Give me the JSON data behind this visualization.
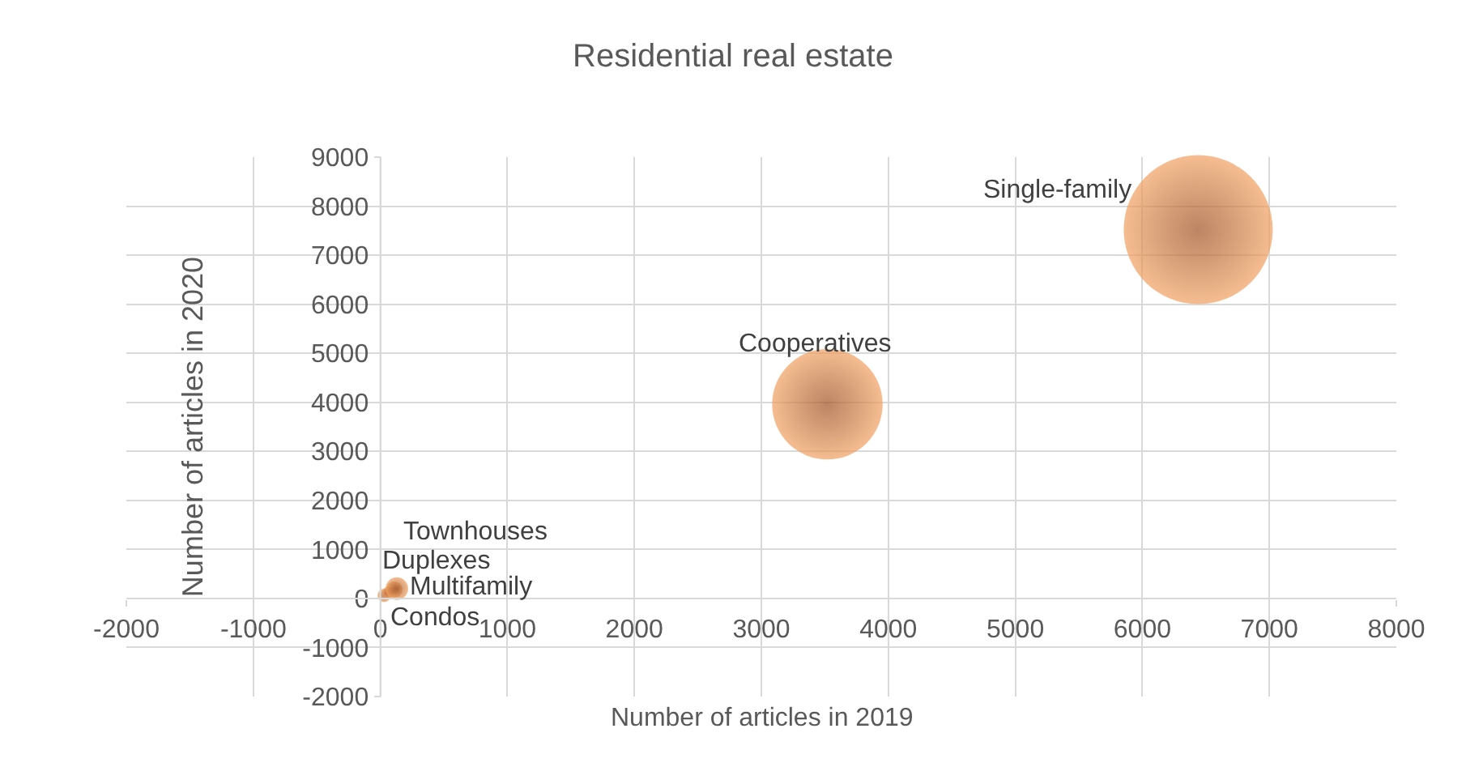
{
  "chart_data": {
    "type": "bubble",
    "title": "Residential real estate",
    "xlabel": "Number of articles in 2019",
    "ylabel": "Number of articles in 2020",
    "x": [
      30,
      60,
      110,
      130,
      3520,
      6440
    ],
    "values": [
      60,
      120,
      180,
      200,
      3960,
      7520
    ],
    "sizes": [
      0.008,
      0.006,
      0.012,
      0.023,
      0.55,
      1
    ],
    "color": "#f0a060",
    "annotations": [
      {
        "text": "Condos",
        "x": 30,
        "y": 60
      },
      {
        "text": "Duplexes",
        "x": 60,
        "y": 120
      },
      {
        "text": "Townhouses",
        "x": 110,
        "y": 180
      },
      {
        "text": "Multifamily",
        "x": 130,
        "y": 200
      },
      {
        "text": "Cooperatives",
        "x": 3520,
        "y": 3960
      },
      {
        "text": "Single-family",
        "x": 6440,
        "y": 7520
      }
    ],
    "xlim": [
      -2000,
      8000
    ],
    "xticks": [
      -2000,
      -1000,
      0,
      1000,
      2000,
      3000,
      4000,
      5000,
      6000,
      7000,
      8000
    ],
    "ylim": [
      -2000,
      9000
    ],
    "yticks": [
      -2000,
      -1000,
      0,
      1000,
      2000,
      3000,
      4000,
      5000,
      6000,
      7000,
      8000,
      9000
    ],
    "grid": true,
    "legend": false
  }
}
